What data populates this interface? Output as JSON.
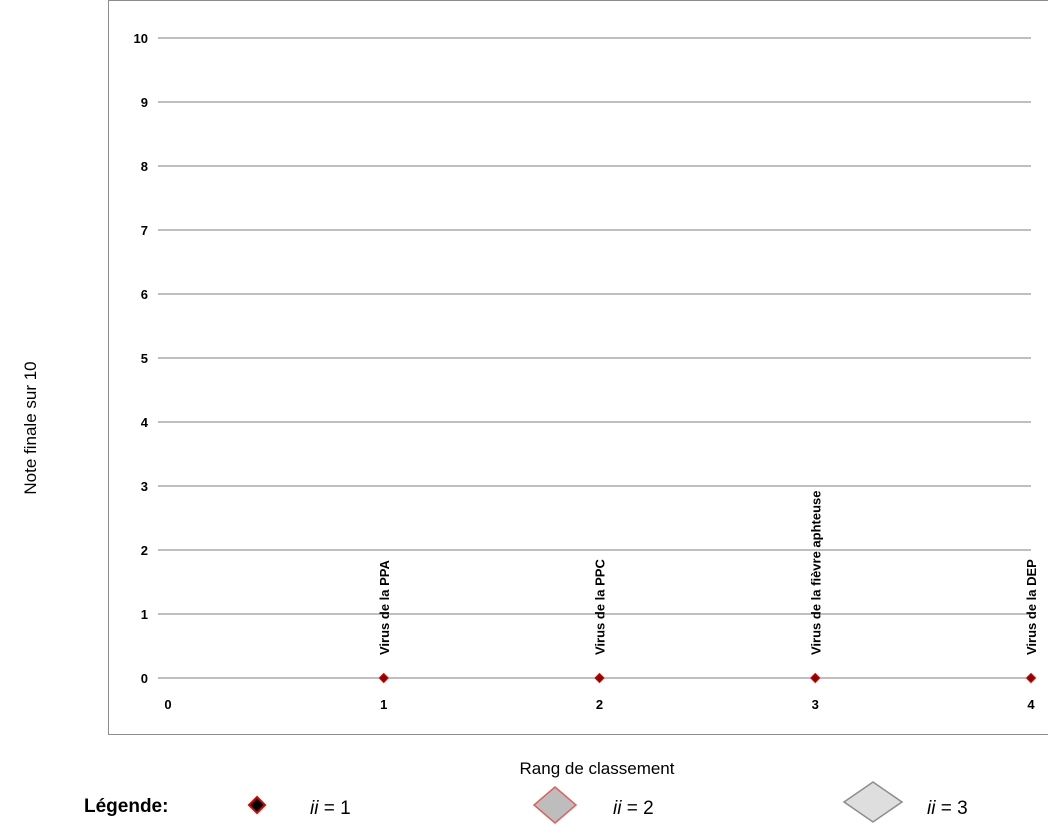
{
  "chart_data": {
    "type": "scatter",
    "xlabel": "Rang de classement",
    "ylabel": "Note finale sur 10",
    "xlim": [
      0,
      4
    ],
    "ylim": [
      0,
      10
    ],
    "x_ticks": [
      "0",
      "1",
      "2",
      "3",
      "4"
    ],
    "y_ticks": [
      "0",
      "1",
      "2",
      "3",
      "4",
      "5",
      "6",
      "7",
      "8",
      "9",
      "10"
    ],
    "grid": "horizontal",
    "series": [
      {
        "name": "ii = 1",
        "color": "#8b0000",
        "points": [
          {
            "x": 1,
            "y": 0,
            "label": "Virus de la PPA"
          },
          {
            "x": 2,
            "y": 0,
            "label": "Virus de la PPC"
          },
          {
            "x": 3,
            "y": 0,
            "label": "Virus de la fièvre aphteuse"
          },
          {
            "x": 4,
            "y": 0,
            "label": "Virus de la DEP"
          }
        ]
      }
    ],
    "legend": {
      "title": "Légende:",
      "entries": [
        {
          "var": "ii",
          "rest": " = 1",
          "marker": "diamond-small-black-red-outline"
        },
        {
          "var": "ii",
          "rest": " = 2",
          "marker": "diamond-medium-grey-red-outline"
        },
        {
          "var": "ii",
          "rest": " = 3",
          "marker": "diamond-large-lightgrey"
        }
      ]
    }
  }
}
